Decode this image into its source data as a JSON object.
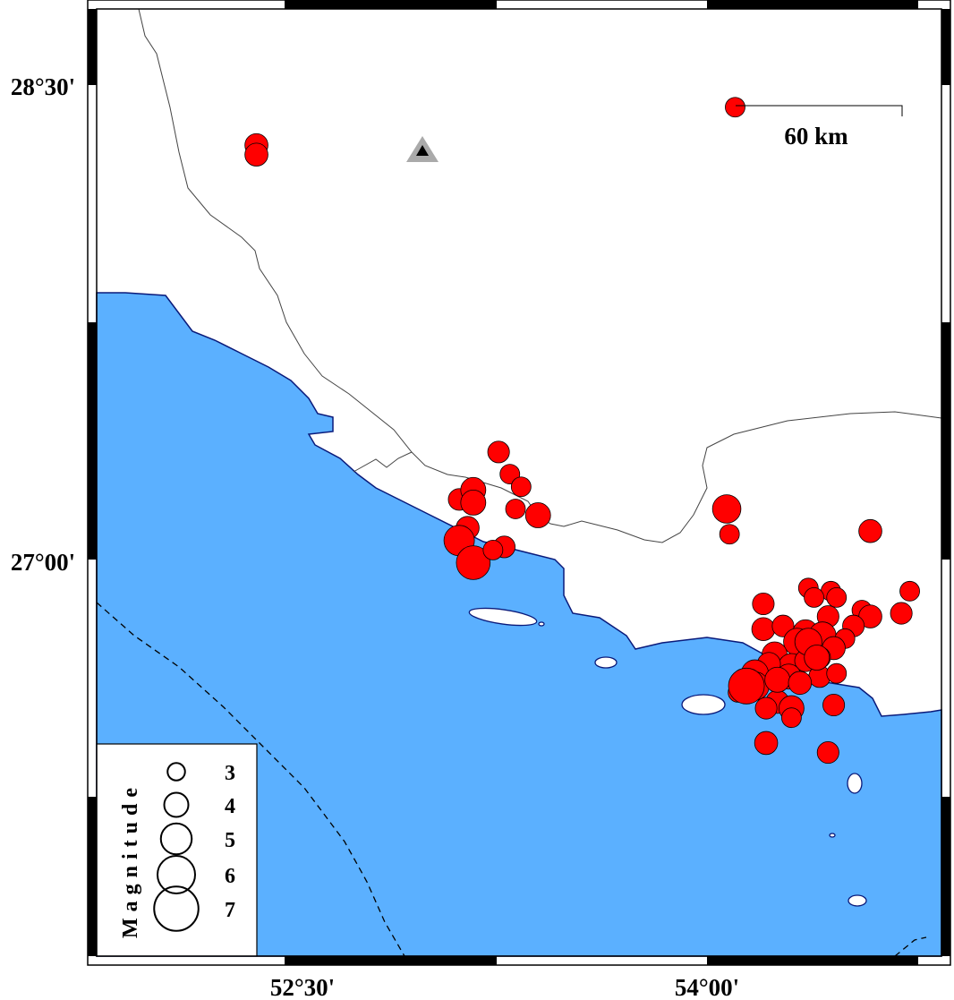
{
  "map": {
    "lat_labels": [
      "28°30'",
      "27°00'"
    ],
    "lon_labels": [
      "52°30'",
      "54°00'"
    ],
    "colors": {
      "sea": "#5bb0ff",
      "land": "#ffffff",
      "coast": "#0a1a7a",
      "event": "#ff0000",
      "station": "#aaaaaa"
    },
    "scale_bar": {
      "label": "60 km"
    },
    "station": {
      "icon": "triangle-station-icon"
    },
    "legend": {
      "title": "Magnitude",
      "items": [
        {
          "label": "3",
          "mag": 3
        },
        {
          "label": "4",
          "mag": 4
        },
        {
          "label": "5",
          "mag": 5
        },
        {
          "label": "6",
          "mag": 6
        },
        {
          "label": "7",
          "mag": 7
        }
      ]
    },
    "events": [
      {
        "lon": 52.4,
        "lat": 28.31,
        "mag": 3.7
      },
      {
        "lon": 52.4,
        "lat": 28.28,
        "mag": 3.7
      },
      {
        "lon": 54.1,
        "lat": 28.43,
        "mag": 3.2
      },
      {
        "lon": 53.26,
        "lat": 27.34,
        "mag": 3.5
      },
      {
        "lon": 53.3,
        "lat": 27.27,
        "mag": 3.2
      },
      {
        "lon": 53.34,
        "lat": 27.23,
        "mag": 3.2
      },
      {
        "lon": 53.12,
        "lat": 27.19,
        "mag": 3.5
      },
      {
        "lon": 53.17,
        "lat": 27.22,
        "mag": 4.0
      },
      {
        "lon": 53.17,
        "lat": 27.18,
        "mag": 4.0
      },
      {
        "lon": 53.32,
        "lat": 27.16,
        "mag": 3.2
      },
      {
        "lon": 53.4,
        "lat": 27.14,
        "mag": 4.0
      },
      {
        "lon": 53.15,
        "lat": 27.1,
        "mag": 3.7
      },
      {
        "lon": 53.12,
        "lat": 27.06,
        "mag": 4.8
      },
      {
        "lon": 53.17,
        "lat": 26.99,
        "mag": 5.3
      },
      {
        "lon": 53.28,
        "lat": 27.04,
        "mag": 3.5
      },
      {
        "lon": 53.24,
        "lat": 27.03,
        "mag": 3.2
      },
      {
        "lon": 54.07,
        "lat": 27.16,
        "mag": 4.5
      },
      {
        "lon": 54.08,
        "lat": 27.08,
        "mag": 3.2
      },
      {
        "lon": 54.58,
        "lat": 27.09,
        "mag": 3.7
      },
      {
        "lon": 54.2,
        "lat": 26.86,
        "mag": 3.5
      },
      {
        "lon": 54.36,
        "lat": 26.91,
        "mag": 3.2
      },
      {
        "lon": 54.44,
        "lat": 26.9,
        "mag": 3.2
      },
      {
        "lon": 54.38,
        "lat": 26.88,
        "mag": 3.2
      },
      {
        "lon": 54.46,
        "lat": 26.88,
        "mag": 3.2
      },
      {
        "lon": 54.55,
        "lat": 26.84,
        "mag": 3.2
      },
      {
        "lon": 54.58,
        "lat": 26.82,
        "mag": 3.7
      },
      {
        "lon": 54.69,
        "lat": 26.83,
        "mag": 3.5
      },
      {
        "lon": 54.72,
        "lat": 26.9,
        "mag": 3.2
      },
      {
        "lon": 54.52,
        "lat": 26.79,
        "mag": 3.5
      },
      {
        "lon": 54.2,
        "lat": 26.78,
        "mag": 3.7
      },
      {
        "lon": 54.27,
        "lat": 26.79,
        "mag": 3.5
      },
      {
        "lon": 54.43,
        "lat": 26.82,
        "mag": 3.5
      },
      {
        "lon": 54.35,
        "lat": 26.77,
        "mag": 4.0
      },
      {
        "lon": 54.41,
        "lat": 26.76,
        "mag": 4.3
      },
      {
        "lon": 54.32,
        "lat": 26.74,
        "mag": 4.3
      },
      {
        "lon": 54.24,
        "lat": 26.7,
        "mag": 4.0
      },
      {
        "lon": 54.49,
        "lat": 26.75,
        "mag": 3.2
      },
      {
        "lon": 54.45,
        "lat": 26.72,
        "mag": 3.7
      },
      {
        "lon": 54.4,
        "lat": 26.69,
        "mag": 3.5
      },
      {
        "lon": 54.3,
        "lat": 26.66,
        "mag": 4.3
      },
      {
        "lon": 54.22,
        "lat": 26.67,
        "mag": 3.7
      },
      {
        "lon": 54.35,
        "lat": 26.68,
        "mag": 3.5
      },
      {
        "lon": 54.29,
        "lat": 26.63,
        "mag": 4.0
      },
      {
        "lon": 54.17,
        "lat": 26.64,
        "mag": 4.3
      },
      {
        "lon": 54.11,
        "lat": 26.58,
        "mag": 3.2
      },
      {
        "lon": 54.17,
        "lat": 26.6,
        "mag": 4.5
      },
      {
        "lon": 54.14,
        "lat": 26.6,
        "mag": 5.6
      },
      {
        "lon": 54.4,
        "lat": 26.63,
        "mag": 3.5
      },
      {
        "lon": 54.46,
        "lat": 26.64,
        "mag": 3.2
      },
      {
        "lon": 54.36,
        "lat": 26.74,
        "mag": 4.3
      },
      {
        "lon": 54.25,
        "lat": 26.55,
        "mag": 3.7
      },
      {
        "lon": 54.21,
        "lat": 26.53,
        "mag": 3.5
      },
      {
        "lon": 54.3,
        "lat": 26.53,
        "mag": 4.0
      },
      {
        "lon": 54.3,
        "lat": 26.5,
        "mag": 3.2
      },
      {
        "lon": 54.45,
        "lat": 26.54,
        "mag": 3.5
      },
      {
        "lon": 54.21,
        "lat": 26.42,
        "mag": 3.7
      },
      {
        "lon": 54.43,
        "lat": 26.39,
        "mag": 3.5
      },
      {
        "lon": 54.39,
        "lat": 26.69,
        "mag": 4.0
      },
      {
        "lon": 54.25,
        "lat": 26.62,
        "mag": 4.0
      },
      {
        "lon": 54.33,
        "lat": 26.61,
        "mag": 3.7
      }
    ]
  }
}
